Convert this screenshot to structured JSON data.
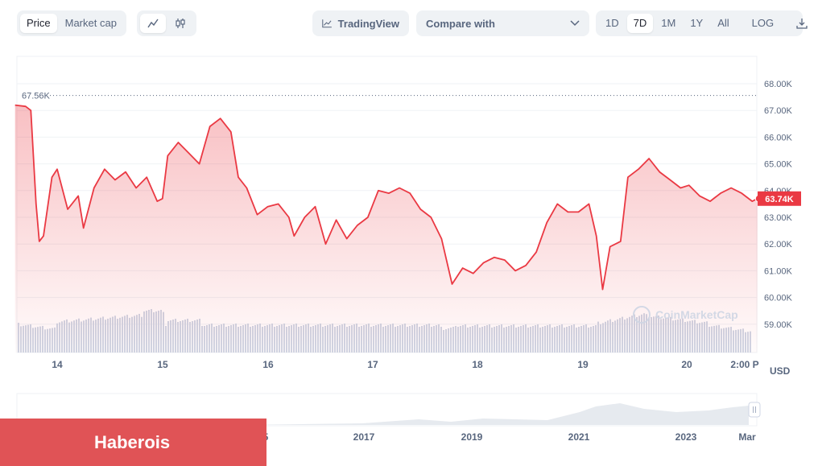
{
  "toolbar": {
    "view_tabs": [
      "Price",
      "Market cap"
    ],
    "active_view": "Price",
    "chart_modes": [
      "line-chart-icon",
      "candlestick-icon"
    ],
    "tradingview_label": "TradingView",
    "compare_label": "Compare with",
    "ranges": [
      "1D",
      "7D",
      "1M",
      "1Y",
      "All"
    ],
    "active_range": "7D",
    "log_label": "LOG"
  },
  "currency_label": "USD",
  "watermark_text": "CoinMarketCap",
  "overlay_text": "Haberois",
  "colors": {
    "line": "#ea3943",
    "fill_top": "#f5c2c5",
    "volume": "#cfd6e4",
    "badge": "#ea3943"
  },
  "chart_data": {
    "type": "line",
    "y_ticks": [
      "68.00K",
      "67.00K",
      "66.00K",
      "65.00K",
      "64.00K",
      "63.00K",
      "62.00K",
      "61.00K",
      "60.00K",
      "59.00K"
    ],
    "ylim": [
      58000,
      68500
    ],
    "x_ticks": [
      "14",
      "15",
      "16",
      "17",
      "18",
      "19",
      "20",
      "2:00 P"
    ],
    "high_label": "67.56K",
    "high_value": 67560,
    "current_label": "63.74K",
    "current_value": 63740,
    "series": [
      {
        "values": [
          [
            13.6,
            67200
          ],
          [
            13.7,
            67150
          ],
          [
            13.75,
            67000
          ],
          [
            13.8,
            63500
          ],
          [
            13.83,
            62100
          ],
          [
            13.87,
            62300
          ],
          [
            13.95,
            64500
          ],
          [
            14.0,
            64800
          ],
          [
            14.1,
            63300
          ],
          [
            14.2,
            63800
          ],
          [
            14.25,
            62600
          ],
          [
            14.35,
            64100
          ],
          [
            14.45,
            64800
          ],
          [
            14.55,
            64400
          ],
          [
            14.65,
            64700
          ],
          [
            14.75,
            64100
          ],
          [
            14.85,
            64500
          ],
          [
            14.95,
            63600
          ],
          [
            15.0,
            63700
          ],
          [
            15.05,
            65300
          ],
          [
            15.15,
            65800
          ],
          [
            15.25,
            65400
          ],
          [
            15.35,
            65000
          ],
          [
            15.45,
            66400
          ],
          [
            15.55,
            66700
          ],
          [
            15.65,
            66200
          ],
          [
            15.72,
            64500
          ],
          [
            15.8,
            64100
          ],
          [
            15.9,
            63100
          ],
          [
            16.0,
            63400
          ],
          [
            16.1,
            63500
          ],
          [
            16.2,
            63000
          ],
          [
            16.25,
            62300
          ],
          [
            16.35,
            63000
          ],
          [
            16.45,
            63400
          ],
          [
            16.55,
            62000
          ],
          [
            16.65,
            62900
          ],
          [
            16.75,
            62200
          ],
          [
            16.85,
            62700
          ],
          [
            16.95,
            63000
          ],
          [
            17.05,
            64000
          ],
          [
            17.15,
            63900
          ],
          [
            17.25,
            64100
          ],
          [
            17.35,
            63900
          ],
          [
            17.45,
            63300
          ],
          [
            17.55,
            63000
          ],
          [
            17.65,
            62200
          ],
          [
            17.75,
            60500
          ],
          [
            17.85,
            61100
          ],
          [
            17.95,
            60900
          ],
          [
            18.05,
            61300
          ],
          [
            18.15,
            61500
          ],
          [
            18.25,
            61400
          ],
          [
            18.35,
            61000
          ],
          [
            18.45,
            61200
          ],
          [
            18.55,
            61700
          ],
          [
            18.65,
            62800
          ],
          [
            18.75,
            63500
          ],
          [
            18.85,
            63200
          ],
          [
            18.95,
            63200
          ],
          [
            19.05,
            63500
          ],
          [
            19.12,
            62300
          ],
          [
            19.18,
            60300
          ],
          [
            19.25,
            61900
          ],
          [
            19.35,
            62100
          ],
          [
            19.42,
            64500
          ],
          [
            19.52,
            64800
          ],
          [
            19.62,
            65200
          ],
          [
            19.72,
            64700
          ],
          [
            19.82,
            64400
          ],
          [
            19.92,
            64100
          ],
          [
            20.0,
            64200
          ],
          [
            20.1,
            63800
          ],
          [
            20.2,
            63600
          ],
          [
            20.3,
            63900
          ],
          [
            20.4,
            64100
          ],
          [
            20.5,
            63900
          ],
          [
            20.6,
            63600
          ],
          [
            20.65,
            63700
          ]
        ]
      }
    ]
  }
}
